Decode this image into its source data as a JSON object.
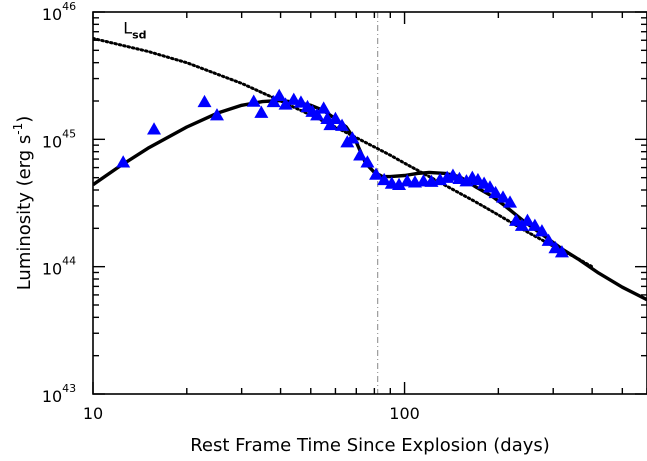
{
  "chart_data": {
    "type": "scatter",
    "title": "",
    "xlabel": "Rest Frame Time Since Explosion (days)",
    "ylabel_main": "Luminosity (erg s",
    "ylabel_exp": "-1",
    "ylabel_close": ")",
    "xscale": "log",
    "yscale": "log",
    "xlim": [
      10,
      600
    ],
    "ylim": [
      1e+43,
      1e+46
    ],
    "x_ticks": [
      {
        "value": 10,
        "label": "10"
      },
      {
        "value": 100,
        "label": "100"
      }
    ],
    "y_ticks": [
      {
        "value": 1e+43,
        "base": "10",
        "exp": "43"
      },
      {
        "value": 1e+44,
        "base": "10",
        "exp": "44"
      },
      {
        "value": 1e+45,
        "base": "10",
        "exp": "45"
      },
      {
        "value": 1e+46,
        "base": "10",
        "exp": "46"
      }
    ],
    "vertical_line_x": 82,
    "annotation": {
      "main": "L",
      "sub": "sd",
      "x": 12.5,
      "y": 6.8e+45
    },
    "marker_color": "#0000ff",
    "observations": {
      "x": [
        12.5,
        15.7,
        22.8,
        25.0,
        32.8,
        34.7,
        38.0,
        39.6,
        41.5,
        44.1,
        46.5,
        48.8,
        50.6,
        52.4,
        55.0,
        56.5,
        57.8,
        60.0,
        63.0,
        65.5,
        68.0,
        72.0,
        76.0,
        81.0,
        86.0,
        91.0,
        96.0,
        102.0,
        108.0,
        115.0,
        122.0,
        130.0,
        137.0,
        143.0,
        150.0,
        158.0,
        165.0,
        172.0,
        180.0,
        188.0,
        196.0,
        207.0,
        218.0,
        228.0,
        238.0,
        248.0,
        262.0,
        276.0,
        290.0,
        305.0,
        320.0
      ],
      "y": [
        6.6e+44,
        1.2e+45,
        1.97e+45,
        1.55e+45,
        1.98e+45,
        1.62e+45,
        1.97e+45,
        2.2e+45,
        1.88e+45,
        2.05e+45,
        1.95e+45,
        1.8e+45,
        1.65e+45,
        1.55e+45,
        1.75e+45,
        1.45e+45,
        1.3e+45,
        1.45e+45,
        1.28e+45,
        9.5e+44,
        1.02e+45,
        7.5e+44,
        6.6e+44,
        5.3e+44,
        4.8e+44,
        4.5e+44,
        4.4e+44,
        4.7e+44,
        4.6e+44,
        4.7e+44,
        4.65e+44,
        4.8e+44,
        5e+44,
        5.2e+44,
        4.9e+44,
        4.7e+44,
        5e+44,
        4.8e+44,
        4.5e+44,
        4.2e+44,
        3.8e+44,
        3.5e+44,
        3.2e+44,
        2.3e+44,
        2.1e+44,
        2.3e+44,
        2.1e+44,
        1.9e+44,
        1.6e+44,
        1.4e+44,
        1.3e+44
      ]
    },
    "model_fit": {
      "x": [
        10,
        12,
        15,
        20,
        25,
        30,
        35,
        40,
        45,
        50,
        55,
        60,
        65,
        70,
        75,
        80,
        85,
        90,
        100,
        110,
        120,
        135,
        150,
        170,
        190,
        210,
        240,
        280,
        320,
        360,
        420,
        500,
        600
      ],
      "y": [
        4.4e+44,
        6e+44,
        8.5e+44,
        1.25e+45,
        1.6e+45,
        1.85e+45,
        1.98e+45,
        2.02e+45,
        1.95e+45,
        1.85e+45,
        1.68e+45,
        1.45e+45,
        1.25e+45,
        9.5e+44,
        6.5e+44,
        5.5e+44,
        5.1e+44,
        5.1e+44,
        5.2e+44,
        5.4e+44,
        5.5e+44,
        5.4e+44,
        5.1e+44,
        4.2e+44,
        3.6e+44,
        3e+44,
        2.3e+44,
        1.75e+44,
        1.38e+44,
        1.15e+44,
        8.9e+43,
        6.9e+43,
        5.5e+43
      ]
    },
    "spin_down": {
      "x": [
        10,
        15,
        20,
        30,
        40,
        50,
        60,
        70,
        80,
        90,
        100,
        120,
        140,
        170,
        200,
        250,
        300,
        350,
        400
      ],
      "y": [
        6.2e+45,
        4.9e+45,
        4e+45,
        2.75e+45,
        2e+45,
        1.55e+45,
        1.25e+45,
        1.03e+45,
        8.7e+44,
        7.5e+44,
        6.5e+44,
        5.1e+44,
        4.15e+44,
        3.2e+44,
        2.55e+44,
        1.85e+44,
        1.45e+44,
        1.2e+44,
        1e+44
      ]
    }
  }
}
